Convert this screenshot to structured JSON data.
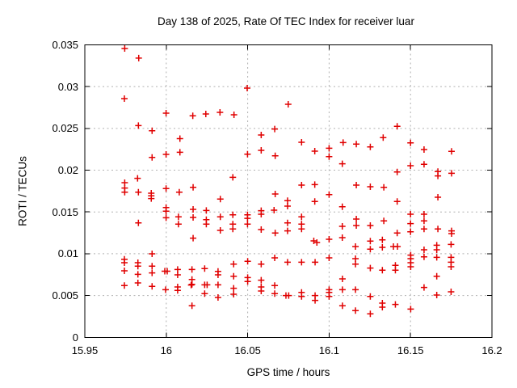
{
  "title": "Day 138 of 2025, Rate Of TEC Index for receiver luar",
  "x_axis": {
    "label": "GPS time / hours",
    "ticks": [
      {
        "value": 15.95,
        "label": "15.95"
      },
      {
        "value": 16.0,
        "label": "16"
      },
      {
        "value": 16.05,
        "label": "16.05"
      },
      {
        "value": 16.1,
        "label": "16.1"
      },
      {
        "value": 16.15,
        "label": "16.15"
      },
      {
        "value": 16.2,
        "label": "16.2"
      }
    ]
  },
  "y_axis": {
    "label": "ROTI / TECUs",
    "ticks": [
      {
        "value": 0,
        "label": "0"
      },
      {
        "value": 0.005,
        "label": "0.005"
      },
      {
        "value": 0.01,
        "label": "0.01"
      },
      {
        "value": 0.015,
        "label": "0.015"
      },
      {
        "value": 0.02,
        "label": "0.02"
      },
      {
        "value": 0.025,
        "label": "0.025"
      },
      {
        "value": 0.03,
        "label": "0.03"
      },
      {
        "value": 0.035,
        "label": "0.035"
      }
    ]
  },
  "chart_data": {
    "type": "scatter",
    "title": "Day 138 of 2025, Rate Of TEC Index for receiver luar",
    "xlabel": "GPS time / hours",
    "ylabel": "ROTI / TECUs",
    "xlim": [
      15.95,
      16.2
    ],
    "ylim": [
      0,
      0.035
    ],
    "xtick_labels": [
      "15.95",
      "16",
      "16.05",
      "16.1",
      "16.15",
      "16.2"
    ],
    "ytick_labels": [
      "0",
      "0.005",
      "0.01",
      "0.015",
      "0.02",
      "0.025",
      "0.03",
      "0.035"
    ],
    "grid": true,
    "legend": false,
    "marker": "plus",
    "marker_color": "#e00000",
    "grid_color": "#b0b0b0",
    "series": [
      {
        "name": "ROTI",
        "points": [
          [
            15.9745,
            0.03457
          ],
          [
            15.9831,
            0.03341
          ],
          [
            15.9743,
            0.02857
          ],
          [
            15.9999,
            0.02683
          ],
          [
            16.0163,
            0.02651
          ],
          [
            16.0243,
            0.02673
          ],
          [
            15.9829,
            0.02534
          ],
          [
            15.9913,
            0.02472
          ],
          [
            16.0084,
            0.02378
          ],
          [
            16.0084,
            0.02215
          ],
          [
            16.0497,
            0.02982
          ],
          [
            16.0749,
            0.02789
          ],
          [
            16.033,
            0.02692
          ],
          [
            16.0416,
            0.02663
          ],
          [
            16.0666,
            0.02492
          ],
          [
            16.0583,
            0.02421
          ],
          [
            16.0831,
            0.02334
          ],
          [
            16.1086,
            0.02331
          ],
          [
            16.1418,
            0.02525
          ],
          [
            16.1332,
            0.0239
          ],
          [
            16.15,
            0.02327
          ],
          [
            16.1167,
            0.02312
          ],
          [
            16.1253,
            0.02279
          ],
          [
            16.1583,
            0.02247
          ],
          [
            16.1752,
            0.02225
          ],
          [
            16.15,
            0.02053
          ],
          [
            16.1583,
            0.0207
          ],
          [
            16.1418,
            0.01979
          ],
          [
            16.1668,
            0.01983
          ],
          [
            16.1668,
            0.01931
          ],
          [
            16.1752,
            0.01963
          ],
          [
            16.1167,
            0.01821
          ],
          [
            16.1253,
            0.01802
          ],
          [
            16.1336,
            0.01795
          ],
          [
            16.1668,
            0.01676
          ],
          [
            16.1418,
            0.01625
          ],
          [
            16.15,
            0.01473
          ],
          [
            16.1583,
            0.01473
          ],
          [
            16.1167,
            0.01415
          ],
          [
            16.1167,
            0.01338
          ],
          [
            16.1253,
            0.01338
          ],
          [
            16.1336,
            0.01393
          ],
          [
            16.15,
            0.0136
          ],
          [
            16.1583,
            0.01393
          ],
          [
            16.1583,
            0.01296
          ],
          [
            16.15,
            0.01263
          ],
          [
            16.1668,
            0.01296
          ],
          [
            16.1752,
            0.01273
          ],
          [
            16.1752,
            0.01241
          ],
          [
            16.1418,
            0.01248
          ],
          [
            15.9913,
            0.02153
          ],
          [
            15.9999,
            0.02189
          ],
          [
            15.9824,
            0.01902
          ],
          [
            15.9745,
            0.0185
          ],
          [
            15.9745,
            0.01786
          ],
          [
            15.9745,
            0.01737
          ],
          [
            15.9829,
            0.01737
          ],
          [
            15.9908,
            0.01725
          ],
          [
            15.9908,
            0.01693
          ],
          [
            15.9908,
            0.0166
          ],
          [
            15.9999,
            0.0178
          ],
          [
            16.008,
            0.01737
          ],
          [
            16.0165,
            0.01795
          ],
          [
            15.9999,
            0.01553
          ],
          [
            15.9999,
            0.01509
          ],
          [
            16.0165,
            0.01531
          ],
          [
            16.0246,
            0.01518
          ],
          [
            15.9999,
            0.01431
          ],
          [
            16.0075,
            0.01441
          ],
          [
            16.0075,
            0.01354
          ],
          [
            16.0165,
            0.01434
          ],
          [
            16.0246,
            0.01408
          ],
          [
            16.0246,
            0.01354
          ],
          [
            15.9829,
            0.01369
          ],
          [
            16.0165,
            0.01187
          ],
          [
            16.0499,
            0.02192
          ],
          [
            16.0583,
            0.02237
          ],
          [
            16.0669,
            0.02172
          ],
          [
            16.0912,
            0.02228
          ],
          [
            16.1,
            0.02263
          ],
          [
            16.1,
            0.02163
          ],
          [
            16.1081,
            0.02076
          ],
          [
            16.0409,
            0.01915
          ],
          [
            16.0831,
            0.01821
          ],
          [
            16.0912,
            0.01828
          ],
          [
            16.0669,
            0.01715
          ],
          [
            16.1,
            0.01708
          ],
          [
            16.0332,
            0.01654
          ],
          [
            16.0745,
            0.01635
          ],
          [
            16.0745,
            0.0157
          ],
          [
            16.0912,
            0.01625
          ],
          [
            16.1081,
            0.01563
          ],
          [
            16.0583,
            0.01515
          ],
          [
            16.0583,
            0.01473
          ],
          [
            16.0662,
            0.01521
          ],
          [
            16.0332,
            0.01441
          ],
          [
            16.0409,
            0.01466
          ],
          [
            16.0499,
            0.01466
          ],
          [
            16.0499,
            0.01424
          ],
          [
            16.0409,
            0.01354
          ],
          [
            16.0499,
            0.01354
          ],
          [
            16.0332,
            0.01279
          ],
          [
            16.0409,
            0.01296
          ],
          [
            16.0583,
            0.01289
          ],
          [
            16.0745,
            0.01369
          ],
          [
            16.0745,
            0.01273
          ],
          [
            16.0831,
            0.01441
          ],
          [
            16.0831,
            0.01354
          ],
          [
            16.0831,
            0.01296
          ],
          [
            16.0669,
            0.01248
          ],
          [
            16.1081,
            0.01328
          ],
          [
            16.0906,
            0.01154
          ],
          [
            16.0925,
            0.01134
          ],
          [
            16.1,
            0.01173
          ],
          [
            16.1081,
            0.01193
          ],
          [
            15.9913,
            0.00999
          ],
          [
            15.9743,
            0.00934
          ],
          [
            15.9743,
            0.00893
          ],
          [
            15.9743,
            0.00796
          ],
          [
            15.9826,
            0.00893
          ],
          [
            15.9826,
            0.00851
          ],
          [
            15.9913,
            0.00851
          ],
          [
            15.9913,
            0.0077
          ],
          [
            15.9826,
            0.00754
          ],
          [
            15.9991,
            0.00791
          ],
          [
            16.0006,
            0.00791
          ],
          [
            16.007,
            0.00812
          ],
          [
            16.0158,
            0.00812
          ],
          [
            16.0236,
            0.00822
          ],
          [
            16.0318,
            0.00789
          ],
          [
            16.0318,
            0.00748
          ],
          [
            16.007,
            0.00748
          ],
          [
            16.0158,
            0.00692
          ],
          [
            16.0158,
            0.00634
          ],
          [
            15.9743,
            0.00619
          ],
          [
            15.9826,
            0.00651
          ],
          [
            15.9913,
            0.00609
          ],
          [
            15.9996,
            0.0057
          ],
          [
            16.007,
            0.00602
          ],
          [
            16.007,
            0.00561
          ],
          [
            16.0153,
            0.00625
          ],
          [
            16.0236,
            0.00628
          ],
          [
            16.0251,
            0.00628
          ],
          [
            16.0236,
            0.00522
          ],
          [
            16.0318,
            0.00628
          ],
          [
            16.0318,
            0.00477
          ],
          [
            16.0158,
            0.00377
          ],
          [
            16.0414,
            0.00876
          ],
          [
            16.05,
            0.00909
          ],
          [
            16.0583,
            0.00876
          ],
          [
            16.0666,
            0.0095
          ],
          [
            16.0745,
            0.00899
          ],
          [
            16.0831,
            0.00899
          ],
          [
            16.0914,
            0.00899
          ],
          [
            16.1,
            0.0095
          ],
          [
            16.1162,
            0.00941
          ],
          [
            16.1162,
            0.00876
          ],
          [
            16.0414,
            0.00731
          ],
          [
            16.05,
            0.00715
          ],
          [
            16.05,
            0.00667
          ],
          [
            16.0583,
            0.00683
          ],
          [
            16.0583,
            0.00602
          ],
          [
            16.0583,
            0.00554
          ],
          [
            16.0414,
            0.00586
          ],
          [
            16.0414,
            0.00515
          ],
          [
            16.0666,
            0.00619
          ],
          [
            16.0666,
            0.00522
          ],
          [
            16.0735,
            0.00499
          ],
          [
            16.0752,
            0.00499
          ],
          [
            16.0831,
            0.00537
          ],
          [
            16.0831,
            0.00489
          ],
          [
            16.0914,
            0.00499
          ],
          [
            16.0914,
            0.00441
          ],
          [
            16.1,
            0.0057
          ],
          [
            16.1,
            0.00537
          ],
          [
            16.1,
            0.00489
          ],
          [
            16.1082,
            0.0057
          ],
          [
            16.1082,
            0.00699
          ],
          [
            16.1082,
            0.00377
          ],
          [
            16.1162,
            0.0057
          ],
          [
            16.1162,
            0.00319
          ],
          [
            16.1253,
            0.01151
          ],
          [
            16.1253,
            0.01054
          ],
          [
            16.1327,
            0.01166
          ],
          [
            16.1327,
            0.01076
          ],
          [
            16.1395,
            0.01086
          ],
          [
            16.142,
            0.01086
          ],
          [
            16.1501,
            0.00983
          ],
          [
            16.1501,
            0.00941
          ],
          [
            16.1501,
            0.00893
          ],
          [
            16.1501,
            0.00844
          ],
          [
            16.1583,
            0.01047
          ],
          [
            16.1583,
            0.00963
          ],
          [
            16.1661,
            0.01102
          ],
          [
            16.1661,
            0.01047
          ],
          [
            16.1661,
            0.00957
          ],
          [
            16.1749,
            0.01112
          ],
          [
            16.1749,
            0.00957
          ],
          [
            16.1749,
            0.00899
          ],
          [
            16.1749,
            0.00844
          ],
          [
            16.1253,
            0.00828
          ],
          [
            16.1327,
            0.00803
          ],
          [
            16.1407,
            0.00861
          ],
          [
            16.1407,
            0.00803
          ],
          [
            16.1661,
            0.00731
          ],
          [
            16.1583,
            0.00596
          ],
          [
            16.1661,
            0.00505
          ],
          [
            16.1749,
            0.00544
          ],
          [
            16.1253,
            0.00489
          ],
          [
            16.1327,
            0.00409
          ],
          [
            16.1327,
            0.00361
          ],
          [
            16.1407,
            0.00393
          ],
          [
            16.1501,
            0.00338
          ],
          [
            16.1253,
            0.0028
          ],
          [
            16.1162,
            0.01086
          ]
        ]
      }
    ]
  }
}
